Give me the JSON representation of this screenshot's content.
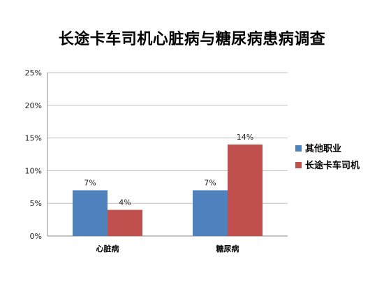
{
  "chart_data": {
    "type": "bar",
    "title": "长途卡车司机心脏病与糖尿病患病调查",
    "categories": [
      "心脏病",
      "糖尿病"
    ],
    "series": [
      {
        "name": "其他职业",
        "values": [
          7,
          7
        ],
        "labels": [
          "7%",
          "7%"
        ],
        "color": "#4F81BD"
      },
      {
        "name": "长途卡车司机",
        "values": [
          4,
          14
        ],
        "labels": [
          "4%",
          "14%"
        ],
        "color": "#C0504D"
      }
    ],
    "ylim": [
      0,
      25
    ],
    "yticks": [
      0,
      5,
      10,
      15,
      20,
      25
    ],
    "ytick_labels": [
      "0%",
      "5%",
      "10%",
      "15%",
      "20%",
      "25%"
    ],
    "xlabel": "",
    "ylabel": "",
    "grid": true,
    "legend_position": "right"
  }
}
